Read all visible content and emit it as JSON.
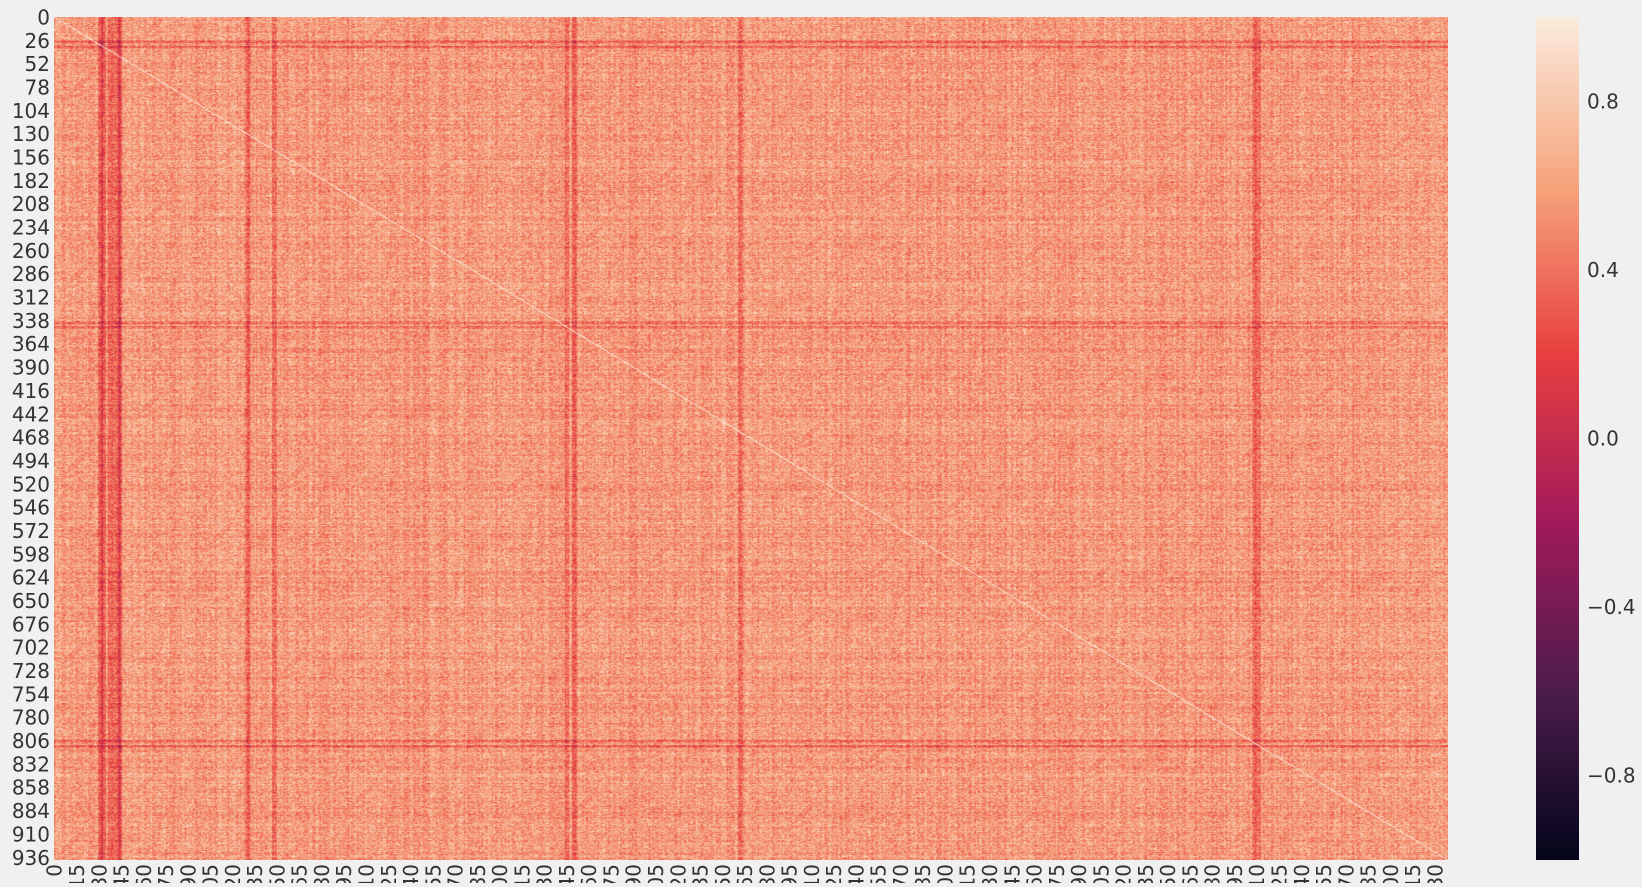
{
  "chart_data": {
    "type": "heatmap",
    "description_scale": "correlation matrix",
    "n_rows": 939,
    "n_cols": 939,
    "y_tick_labels": [
      "0",
      "26",
      "52",
      "78",
      "104",
      "130",
      "156",
      "182",
      "208",
      "234",
      "260",
      "286",
      "312",
      "338",
      "364",
      "390",
      "416",
      "442",
      "468",
      "494",
      "520",
      "546",
      "572",
      "598",
      "624",
      "650",
      "676",
      "702",
      "728",
      "754",
      "780",
      "806",
      "832",
      "858",
      "884",
      "910",
      "936"
    ],
    "y_tick_step": 26,
    "x_tick_labels": [
      "0",
      "15",
      "30",
      "45",
      "60",
      "75",
      "90",
      "105",
      "120",
      "135",
      "150",
      "165",
      "180",
      "195",
      "210",
      "225",
      "240",
      "255",
      "270",
      "285",
      "300",
      "315",
      "330",
      "345",
      "360",
      "375",
      "390",
      "405",
      "420",
      "435",
      "450",
      "465",
      "480",
      "495",
      "510",
      "525",
      "540",
      "555",
      "570",
      "585",
      "600",
      "615",
      "630",
      "645",
      "660",
      "675",
      "690",
      "705",
      "720",
      "735",
      "750",
      "765",
      "780",
      "795",
      "810",
      "825",
      "840",
      "855",
      "870",
      "885",
      "900",
      "915",
      "930"
    ],
    "x_tick_step": 15,
    "colorbar": {
      "vmin": -1.0,
      "vmax": 1.0,
      "tick_labels": [
        "0.8",
        "0.4",
        "0.0",
        "−0.4",
        "−0.8"
      ],
      "tick_values": [
        0.8,
        0.4,
        0.0,
        -0.4,
        -0.8
      ],
      "colormap": "rocket",
      "colormap_stops": [
        "#03051a",
        "#4c1d4b",
        "#a11a5b",
        "#e83f3f",
        "#f6a47c",
        "#faebdd"
      ]
    },
    "diagonal_value": 1.0,
    "typical_value_range": [
      0.3,
      0.85
    ],
    "dark_columns": [
      31,
      33,
      37,
      40,
      43,
      44,
      130,
      148,
      345,
      350,
      462,
      808,
      811
    ],
    "dark_rows": [
      27,
      33,
      340,
      345,
      806,
      812
    ],
    "grid": false,
    "legend": "colorbar-right"
  },
  "colors": {
    "background": "#f0f0f0",
    "text": "#333333"
  }
}
